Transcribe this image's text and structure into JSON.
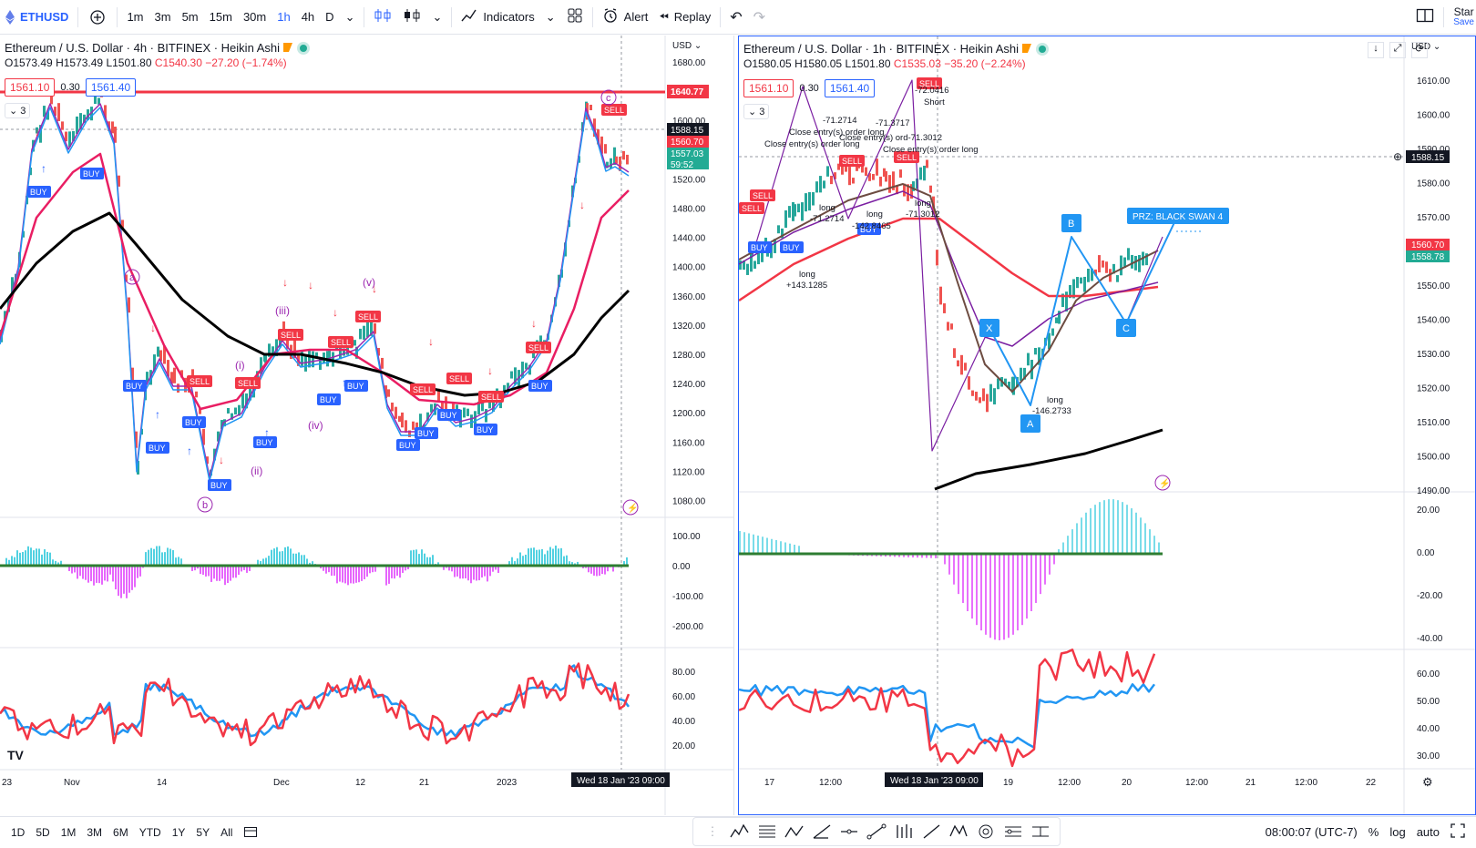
{
  "toolbar": {
    "symbol": "ETHUSD",
    "intervals": [
      "1m",
      "3m",
      "5m",
      "15m",
      "30m",
      "1h",
      "4h",
      "D"
    ],
    "active_interval": "1h",
    "indicators": "Indicators",
    "alert": "Alert",
    "replay": "Replay",
    "start": "Star",
    "save": "Save"
  },
  "left": {
    "title": "Ethereum / U.S. Dollar · 4h · BITFINEX · Heikin Ashi",
    "ohlc": {
      "o": "O1573.49",
      "h": "H1573.49",
      "l": "L1501.80",
      "c": "C1540.30",
      "chg": "−27.20 (−1.74%)"
    },
    "pill_bid": "1561.10",
    "pill_mid": "0.30",
    "pill_ask": "1561.40",
    "collapse": "3",
    "currency": "USD",
    "price_ticks": [
      "1680.00",
      "1640.00",
      "1600.00",
      "1560.00",
      "1520.00",
      "1480.00",
      "1440.00",
      "1400.00",
      "1360.00",
      "1320.00",
      "1280.00",
      "1240.00",
      "1200.00",
      "1160.00",
      "1120.00",
      "1080.00"
    ],
    "price_labels": {
      "red_line": "1640.77",
      "crosshair": "1588.15",
      "last_red": "1560.70",
      "last_green": "1557.03",
      "countdown": "59:52"
    },
    "macd_ticks": [
      "100.00",
      "0.00",
      "-100.00",
      "-200.00"
    ],
    "rsi_ticks": [
      "80.00",
      "60.00",
      "40.00",
      "20.00"
    ],
    "time_ticks": [
      "23",
      "Nov",
      "14",
      "Dec",
      "12",
      "21",
      "2023"
    ],
    "time_cursor": "Wed 18 Jan '23",
    "time_cursor_hr": "09:00",
    "waves": {
      "a": "a",
      "b": "b",
      "c": "c",
      "i": "(i)",
      "ii": "(ii)",
      "iii": "(iii)",
      "iv": "(iv)",
      "v": "(v)"
    }
  },
  "right": {
    "title": "Ethereum / U.S. Dollar · 1h · BITFINEX · Heikin Ashi",
    "ohlc": {
      "o": "O1580.05",
      "h": "H1580.05",
      "l": "L1501.80",
      "c": "C1535.03",
      "chg": "−35.20 (−2.24%)"
    },
    "pill_bid": "1561.10",
    "pill_mid": "0.30",
    "pill_ask": "1561.40",
    "collapse": "3",
    "currency": "USD",
    "price_ticks": [
      "1610.00",
      "1600.00",
      "1590.00",
      "1580.00",
      "1570.00",
      "1560.00",
      "1550.00",
      "1540.00",
      "1530.00",
      "1520.00",
      "1510.00",
      "1500.00",
      "1490.00"
    ],
    "price_labels": {
      "crosshair": "1588.15",
      "last_red": "1560.70",
      "last_green": "1558.78"
    },
    "macd_ticks": [
      "20.00",
      "0.00",
      "-20.00",
      "-40.00"
    ],
    "rsi_ticks": [
      "60.00",
      "50.00",
      "40.00",
      "30.00"
    ],
    "time_ticks": [
      "17",
      "12:00",
      "19",
      "12:00",
      "20",
      "12:00",
      "21",
      "12:00",
      "22"
    ],
    "time_cursor": "Wed 18 Jan '23",
    "time_cursor_hr": "09:00",
    "pattern": {
      "x": "X",
      "a": "A",
      "b": "B",
      "c": "C",
      "prz": "PRZ: BLACK SWAN 4"
    },
    "notes": [
      "-71.2714",
      "Close entry(s) order long",
      "Close entry(s) order long",
      "-71.3717",
      "Close entry(s) ord-71.3012",
      "Close entry(s) order long",
      "-72.0416",
      "Short",
      "long",
      "-71.2714",
      "long",
      "-142.8465",
      "long",
      "-71.3012",
      "long",
      "+143.1285",
      "long",
      "-146.2733"
    ]
  },
  "signals": {
    "buy": "BUY",
    "sell": "SELL"
  },
  "bottom": {
    "ranges": [
      "1D",
      "5D",
      "1M",
      "3M",
      "6M",
      "YTD",
      "1Y",
      "5Y",
      "All"
    ],
    "clock": "08:00:07 (UTC-7)",
    "percent": "%",
    "log": "log",
    "auto": "auto"
  },
  "colors": {
    "accent": "#2962ff",
    "red": "#f23645",
    "green": "#22ab94",
    "ema_red": "#e91e63",
    "sma_black": "#000000"
  }
}
